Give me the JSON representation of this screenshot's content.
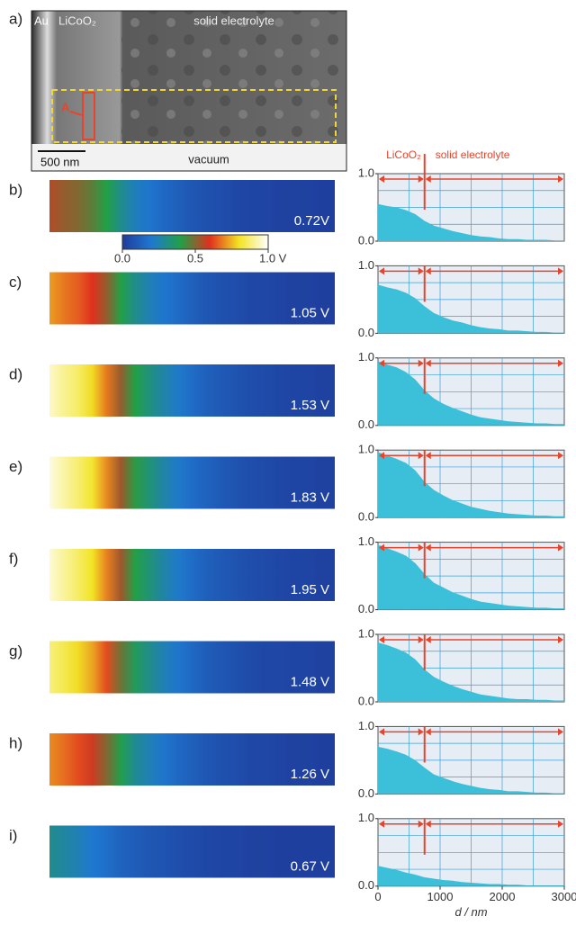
{
  "panel_a": {
    "label": "a)",
    "au": "Au",
    "licoo2": "LiCoO₂",
    "electrolyte": "solid electrolyte",
    "vacuum": "vacuum",
    "scale": "500 nm",
    "marker": "A"
  },
  "colormap": [
    "#1f3c9c",
    "#1f78d0",
    "#22a046",
    "#e0301e",
    "#f2e424",
    "#ffffff"
  ],
  "colorbar": {
    "ticks": [
      {
        "value": 0,
        "label": "0.0"
      },
      {
        "value": 0.5,
        "label": "0.5"
      },
      {
        "value": 1,
        "label": "1.0 V"
      }
    ]
  },
  "chart_data": [
    {
      "type": "area",
      "panel_label": "b)",
      "voltage": "0.72V",
      "annotations": [
        "LiCoO₂",
        "solid electrolyte"
      ],
      "interface": 750,
      "color": "#3cbfd8",
      "xlim": [
        0,
        3000
      ],
      "ylim": [
        0,
        1
      ],
      "yticks": [
        {
          "value": 0,
          "label": "0.0"
        },
        {
          "value": 1,
          "label": "1.0"
        }
      ],
      "x": [
        0,
        150,
        300,
        450,
        600,
        750,
        900,
        1050,
        1200,
        1350,
        1500,
        1650,
        1800,
        1950,
        2100,
        2250,
        2400,
        2550,
        2700,
        2850,
        3000
      ],
      "values": [
        0.55,
        0.52,
        0.5,
        0.46,
        0.4,
        0.3,
        0.23,
        0.19,
        0.15,
        0.12,
        0.09,
        0.07,
        0.06,
        0.04,
        0.03,
        0.03,
        0.02,
        0.02,
        0.02,
        0.01,
        0.01
      ]
    },
    {
      "type": "area",
      "panel_label": "c)",
      "voltage": "1.05 V",
      "interface": 750,
      "color": "#3cbfd8",
      "xlim": [
        0,
        3000
      ],
      "ylim": [
        0,
        1
      ],
      "yticks": [
        {
          "value": 0,
          "label": "0.0"
        },
        {
          "value": 1,
          "label": "1.0"
        }
      ],
      "x": [
        0,
        150,
        300,
        450,
        600,
        750,
        900,
        1050,
        1200,
        1350,
        1500,
        1650,
        1800,
        1950,
        2100,
        2250,
        2400,
        2550,
        2700,
        2850,
        3000
      ],
      "values": [
        0.72,
        0.68,
        0.65,
        0.6,
        0.52,
        0.4,
        0.3,
        0.24,
        0.19,
        0.16,
        0.12,
        0.09,
        0.07,
        0.06,
        0.04,
        0.04,
        0.03,
        0.02,
        0.02,
        0.01,
        0.01
      ]
    },
    {
      "type": "area",
      "panel_label": "d)",
      "voltage": "1.53 V",
      "interface": 750,
      "color": "#3cbfd8",
      "xlim": [
        0,
        3000
      ],
      "ylim": [
        0,
        1
      ],
      "yticks": [
        {
          "value": 0,
          "label": "0.0"
        },
        {
          "value": 1,
          "label": "1.0"
        }
      ],
      "x": [
        0,
        150,
        300,
        450,
        600,
        750,
        900,
        1050,
        1200,
        1350,
        1500,
        1650,
        1800,
        1950,
        2100,
        2250,
        2400,
        2550,
        2700,
        2850,
        3000
      ],
      "values": [
        0.95,
        0.9,
        0.86,
        0.79,
        0.68,
        0.52,
        0.4,
        0.32,
        0.26,
        0.21,
        0.16,
        0.12,
        0.1,
        0.08,
        0.06,
        0.05,
        0.04,
        0.03,
        0.03,
        0.02,
        0.02
      ]
    },
    {
      "type": "area",
      "panel_label": "e)",
      "voltage": "1.83 V",
      "interface": 750,
      "color": "#3cbfd8",
      "xlim": [
        0,
        3000
      ],
      "ylim": [
        0,
        1
      ],
      "yticks": [
        {
          "value": 0,
          "label": "0.0"
        },
        {
          "value": 1,
          "label": "1.0"
        }
      ],
      "x": [
        0,
        150,
        300,
        450,
        600,
        750,
        900,
        1050,
        1200,
        1350,
        1500,
        1650,
        1800,
        1950,
        2100,
        2250,
        2400,
        2550,
        2700,
        2850,
        3000
      ],
      "values": [
        0.97,
        0.92,
        0.87,
        0.81,
        0.7,
        0.53,
        0.41,
        0.33,
        0.26,
        0.21,
        0.16,
        0.13,
        0.1,
        0.08,
        0.06,
        0.05,
        0.04,
        0.03,
        0.03,
        0.02,
        0.02
      ]
    },
    {
      "type": "area",
      "panel_label": "f)",
      "voltage": "1.95 V",
      "interface": 750,
      "color": "#3cbfd8",
      "xlim": [
        0,
        3000
      ],
      "ylim": [
        0,
        1
      ],
      "yticks": [
        {
          "value": 0,
          "label": "0.0"
        },
        {
          "value": 1,
          "label": "1.0"
        }
      ],
      "x": [
        0,
        150,
        300,
        450,
        600,
        750,
        900,
        1050,
        1200,
        1350,
        1500,
        1650,
        1800,
        1950,
        2100,
        2250,
        2400,
        2550,
        2700,
        2850,
        3000
      ],
      "values": [
        0.96,
        0.91,
        0.86,
        0.8,
        0.69,
        0.53,
        0.4,
        0.33,
        0.26,
        0.21,
        0.16,
        0.12,
        0.1,
        0.08,
        0.06,
        0.05,
        0.04,
        0.03,
        0.03,
        0.02,
        0.02
      ]
    },
    {
      "type": "area",
      "panel_label": "g)",
      "voltage": "1.48 V",
      "interface": 750,
      "color": "#3cbfd8",
      "xlim": [
        0,
        3000
      ],
      "ylim": [
        0,
        1
      ],
      "yticks": [
        {
          "value": 0,
          "label": "0.0"
        },
        {
          "value": 1,
          "label": "1.0"
        }
      ],
      "x": [
        0,
        150,
        300,
        450,
        600,
        750,
        900,
        1050,
        1200,
        1350,
        1500,
        1650,
        1800,
        1950,
        2100,
        2250,
        2400,
        2550,
        2700,
        2850,
        3000
      ],
      "values": [
        0.88,
        0.84,
        0.79,
        0.73,
        0.63,
        0.48,
        0.37,
        0.3,
        0.24,
        0.19,
        0.15,
        0.11,
        0.09,
        0.07,
        0.05,
        0.04,
        0.04,
        0.03,
        0.03,
        0.02,
        0.02
      ]
    },
    {
      "type": "area",
      "panel_label": "h)",
      "voltage": "1.26 V",
      "interface": 750,
      "color": "#3cbfd8",
      "xlim": [
        0,
        3000
      ],
      "ylim": [
        0,
        1
      ],
      "yticks": [
        {
          "value": 0,
          "label": "0.0"
        },
        {
          "value": 1,
          "label": "1.0"
        }
      ],
      "x": [
        0,
        150,
        300,
        450,
        600,
        750,
        900,
        1050,
        1200,
        1350,
        1500,
        1650,
        1800,
        1950,
        2100,
        2250,
        2400,
        2550,
        2700,
        2850,
        3000
      ],
      "values": [
        0.7,
        0.67,
        0.63,
        0.58,
        0.5,
        0.39,
        0.29,
        0.24,
        0.19,
        0.15,
        0.12,
        0.09,
        0.07,
        0.06,
        0.04,
        0.04,
        0.03,
        0.02,
        0.02,
        0.01,
        0.01
      ]
    },
    {
      "type": "area",
      "panel_label": "i)",
      "voltage": "0.67 V",
      "interface": 750,
      "color": "#3cbfd8",
      "xlim": [
        0,
        3000
      ],
      "ylim": [
        0,
        1
      ],
      "yticks": [
        {
          "value": 0,
          "label": "0.0"
        },
        {
          "value": 1,
          "label": "1.0"
        }
      ],
      "xticks": [
        0,
        1000,
        2000,
        3000
      ],
      "xlabel": "d / nm",
      "x": [
        0,
        150,
        300,
        450,
        600,
        750,
        900,
        1050,
        1200,
        1350,
        1500,
        1650,
        1800,
        1950,
        2100,
        2250,
        2400,
        2550,
        2700,
        2850,
        3000
      ],
      "values": [
        0.3,
        0.27,
        0.24,
        0.2,
        0.17,
        0.13,
        0.11,
        0.09,
        0.08,
        0.06,
        0.05,
        0.04,
        0.03,
        0.03,
        0.02,
        0.02,
        0.01,
        0.01,
        0.01,
        0.01,
        0.01
      ]
    }
  ]
}
